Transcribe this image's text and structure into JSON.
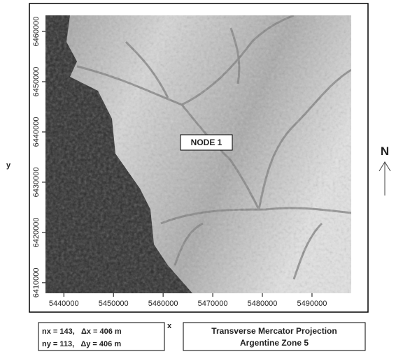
{
  "map": {
    "type": "raster",
    "xlabel": "x",
    "ylabel": "y",
    "xlim": [
      5436300,
      5497900
    ],
    "ylim": [
      6407900,
      6463200
    ],
    "xticks": [
      5440000,
      5450000,
      5460000,
      5470000,
      5480000,
      5490000
    ],
    "yticks": [
      6410000,
      6420000,
      6430000,
      6440000,
      6450000,
      6460000
    ],
    "annotation": "NODE 1",
    "north": "N",
    "grid_info": [
      "nx = 143,   Δx = 406 m",
      "ny = 113,   Δy = 406 m"
    ],
    "projection": [
      "Transverse Mercator Projection",
      "Argentine Zone 5"
    ]
  }
}
